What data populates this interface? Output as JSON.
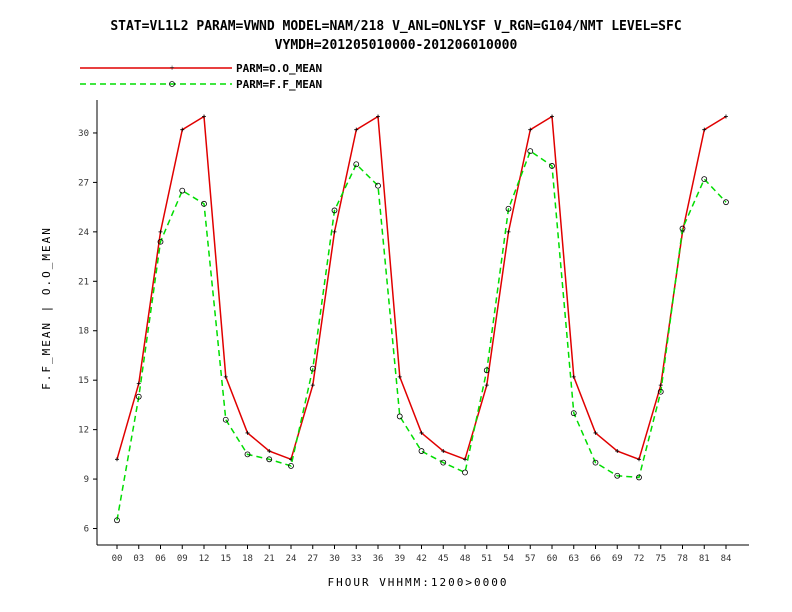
{
  "title_line1": "STAT=VL1L2 PARAM=VWND MODEL=NAM/218 V_ANL=ONLYSF V_RGN=G104/NMT LEVEL=SFC",
  "title_line2": "VYMDH=201205010000-201206010000",
  "chart_data": {
    "type": "line",
    "xlabel": "FHOUR VHHMM:1200>0000",
    "ylabel": "F.F_MEAN | O.O_MEAN",
    "ylim": [
      5,
      32
    ],
    "yticks": [
      6,
      9,
      12,
      15,
      18,
      21,
      24,
      27,
      30
    ],
    "categories": [
      "00",
      "03",
      "06",
      "09",
      "12",
      "15",
      "18",
      "21",
      "24",
      "27",
      "30",
      "33",
      "36",
      "39",
      "42",
      "45",
      "48",
      "51",
      "54",
      "57",
      "60",
      "63",
      "66",
      "69",
      "72",
      "75",
      "78",
      "81",
      "84"
    ],
    "legend_position": "top-left",
    "grid": false,
    "series": [
      {
        "name": "PARM=O.O_MEAN",
        "color": "#e00000",
        "style": "solid",
        "marker": "plus",
        "values": [
          10.2,
          14.8,
          24.0,
          30.2,
          31.0,
          15.2,
          11.8,
          10.7,
          10.2,
          14.7,
          24.0,
          30.2,
          31.0,
          15.2,
          11.8,
          10.7,
          10.2,
          14.7,
          24.0,
          30.2,
          31.0,
          15.2,
          11.8,
          10.7,
          10.2,
          14.7,
          24.0,
          30.2,
          31.0
        ]
      },
      {
        "name": "PARM=F.F_MEAN",
        "color": "#00dd00",
        "style": "dashed",
        "marker": "circle",
        "values": [
          6.5,
          14.0,
          23.4,
          26.5,
          25.7,
          12.6,
          10.5,
          10.2,
          9.8,
          15.7,
          25.3,
          28.1,
          26.8,
          12.8,
          10.7,
          10.0,
          9.4,
          15.6,
          25.4,
          28.9,
          28.0,
          13.0,
          10.0,
          9.2,
          9.1,
          14.3,
          24.2,
          27.2,
          25.8
        ]
      }
    ]
  }
}
